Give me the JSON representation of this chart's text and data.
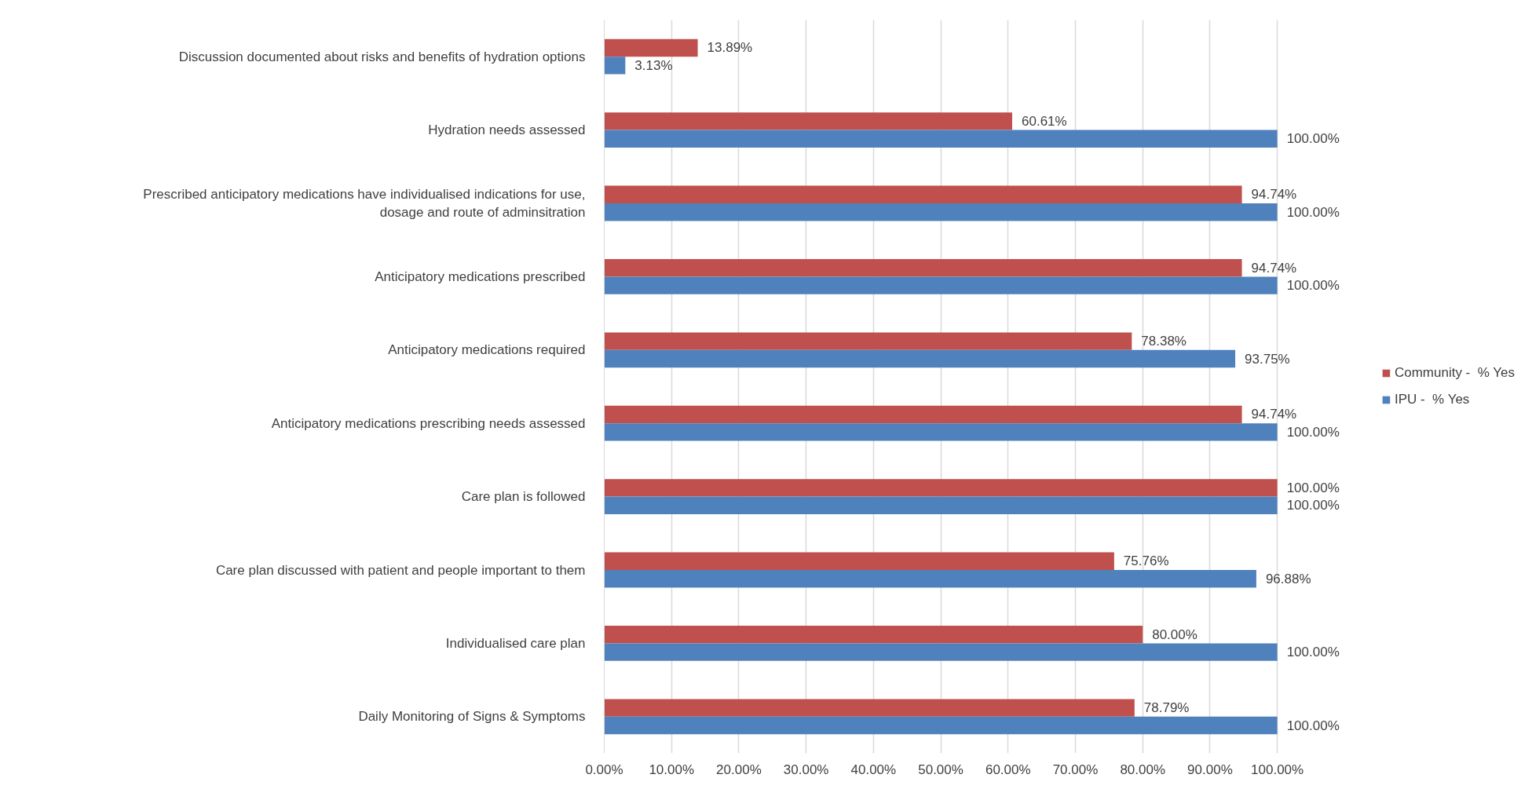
{
  "chart_data": {
    "type": "bar",
    "orientation": "horizontal",
    "categories": [
      "Discussion documented about risks and benefits of hydration options",
      "Hydration needs assessed",
      "Prescribed anticipatory medications have individualised indications for use, dosage and route of adminsitration",
      "Anticipatory medications prescribed",
      "Anticipatory medications required",
      "Anticipatory medications prescribing needs assessed",
      "Care plan is followed",
      "Care plan discussed with patient and people important to them",
      "Individualised care plan",
      "Daily Monitoring of Signs & Symptoms"
    ],
    "series": [
      {
        "name": "Community -  % Yes",
        "color": "#c0504d",
        "values": [
          13.89,
          60.61,
          94.74,
          94.74,
          78.38,
          94.74,
          100,
          75.76,
          80,
          78.79
        ],
        "value_labels": [
          "13.89%",
          "60.61%",
          "94.74%",
          "94.74%",
          "78.38%",
          "94.74%",
          "100.00%",
          "75.76%",
          "80.00%",
          "78.79%"
        ]
      },
      {
        "name": "IPU -  % Yes",
        "color": "#4f81bd",
        "values": [
          3.13,
          100,
          100,
          100,
          93.75,
          100,
          100,
          96.88,
          100,
          100
        ],
        "value_labels": [
          "3.13%",
          "100.00%",
          "100.00%",
          "100.00%",
          "93.75%",
          "100.00%",
          "100.00%",
          "96.88%",
          "100.00%",
          "100.00%"
        ]
      }
    ],
    "xlim": [
      0,
      100
    ],
    "xticks": [
      {
        "value": 0,
        "label": "0.00%"
      },
      {
        "value": 10,
        "label": "10.00%"
      },
      {
        "value": 20,
        "label": "20.00%"
      },
      {
        "value": 30,
        "label": "30.00%"
      },
      {
        "value": 40,
        "label": "40.00%"
      },
      {
        "value": 50,
        "label": "50.00%"
      },
      {
        "value": 60,
        "label": "60.00%"
      },
      {
        "value": 70,
        "label": "70.00%"
      },
      {
        "value": 80,
        "label": "80.00%"
      },
      {
        "value": 90,
        "label": "90.00%"
      },
      {
        "value": 100,
        "label": "100.00%"
      }
    ],
    "grid": "x",
    "legend": "right"
  }
}
